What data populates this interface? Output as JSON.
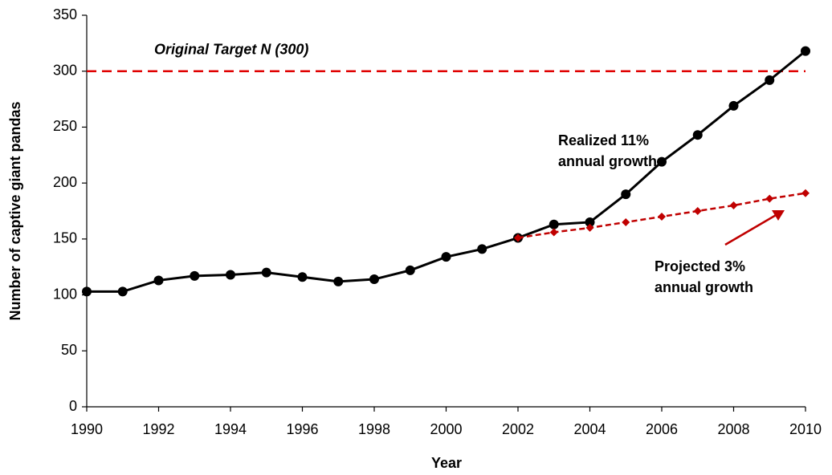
{
  "chart_data": {
    "type": "line",
    "x_label": "Year",
    "y_label": "Number of captive giant pandas",
    "x": [
      1990,
      1991,
      1992,
      1993,
      1994,
      1995,
      1996,
      1997,
      1998,
      1999,
      2000,
      2001,
      2002,
      2003,
      2004,
      2005,
      2006,
      2007,
      2008,
      2009,
      2010
    ],
    "series": [
      {
        "name": "Realized",
        "color": "#000000",
        "marker": "circle",
        "dash": false,
        "values": [
          103,
          103,
          113,
          117,
          118,
          120,
          116,
          112,
          114,
          122,
          134,
          141,
          151,
          163,
          165,
          190,
          219,
          243,
          269,
          292,
          318
        ]
      },
      {
        "name": "Projected",
        "color": "#c00000",
        "marker": "diamond",
        "dash": true,
        "values": [
          null,
          null,
          null,
          null,
          null,
          null,
          null,
          null,
          null,
          null,
          null,
          null,
          151,
          156,
          160,
          165,
          170,
          175,
          180,
          186,
          191
        ]
      }
    ],
    "xlim": [
      1990,
      2010
    ],
    "xticks": [
      1990,
      1992,
      1994,
      1996,
      1998,
      2000,
      2002,
      2004,
      2006,
      2008,
      2010
    ],
    "ylim": [
      0,
      350
    ],
    "yticks": [
      0,
      50,
      100,
      150,
      200,
      250,
      300,
      350
    ],
    "grid": false,
    "reference_line": {
      "value": 300,
      "label": "Original Target N (300)",
      "color": "#e00000"
    },
    "annotations": [
      {
        "lines": [
          "Realized 11%",
          "annual growth"
        ],
        "color": "#000000"
      },
      {
        "lines": [
          "Projected 3%",
          "annual growth"
        ],
        "color": "#c00000"
      }
    ]
  }
}
